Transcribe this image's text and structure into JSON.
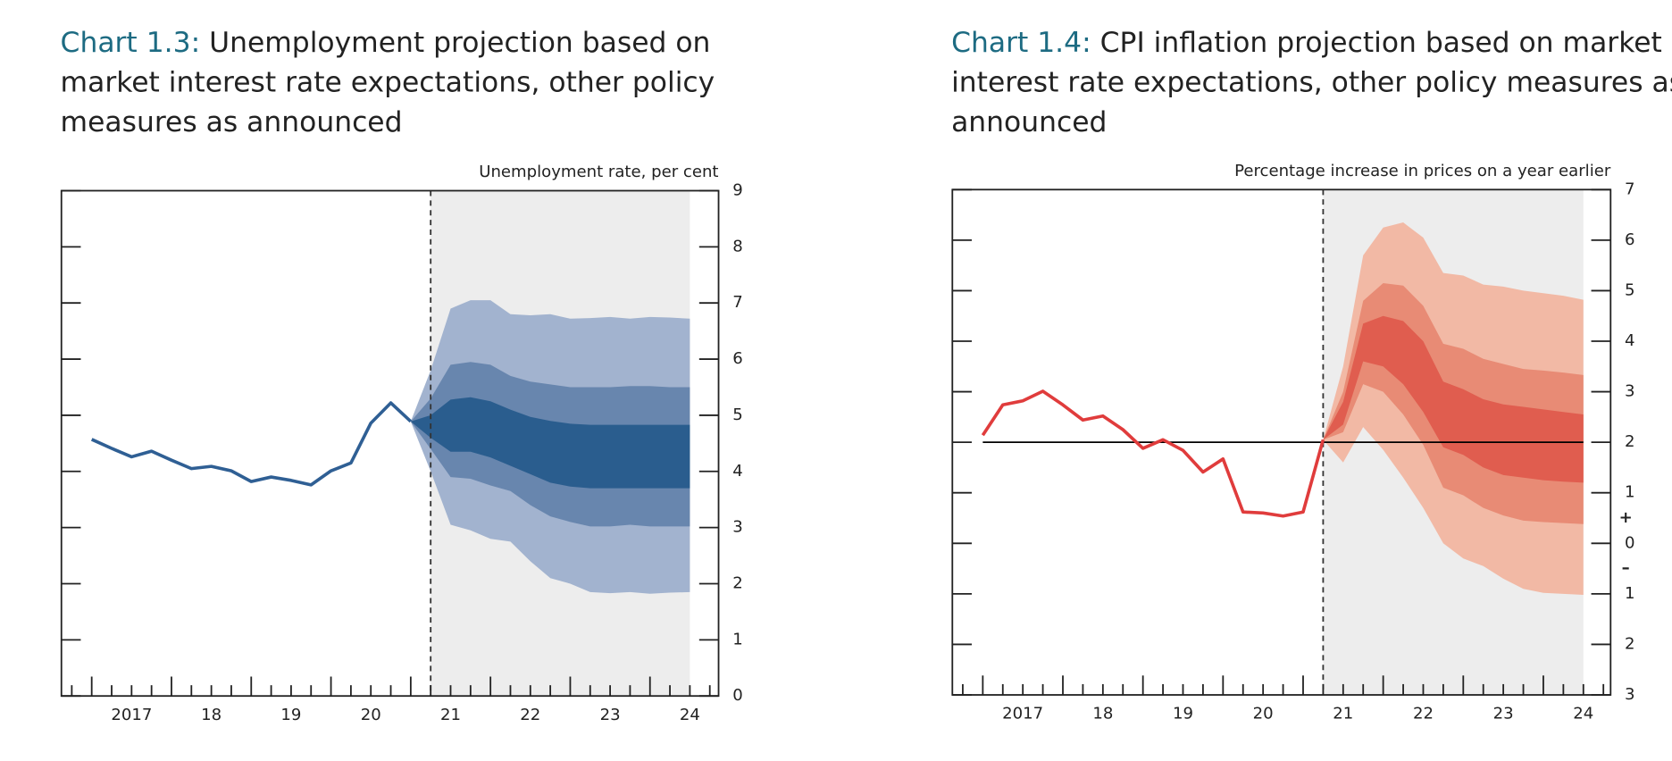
{
  "chart_data": [
    {
      "type": "fan",
      "title_prefix": "Chart 1.3:",
      "title": "Unemployment projection based on market interest rate expectations, other policy measures as announced",
      "y_label": "Unemployment rate, per cent",
      "x": [
        2017,
        2017.25,
        2017.5,
        2017.75,
        2018,
        2018.25,
        2018.5,
        2018.75,
        2019,
        2019.25,
        2019.5,
        2019.75,
        2020,
        2020.25,
        2020.5,
        2020.75,
        2021
      ],
      "values": [
        4.57,
        4.41,
        4.26,
        4.36,
        4.2,
        4.05,
        4.09,
        4.01,
        3.82,
        3.9,
        3.84,
        3.76,
        4.01,
        4.15,
        4.86,
        5.22,
        4.89
      ],
      "color": "#2f5f94",
      "fan_x": [
        2021,
        2021.25,
        2021.5,
        2021.75,
        2022,
        2022.25,
        2022.5,
        2022.75,
        2023,
        2023.25,
        2023.5,
        2023.75,
        2024,
        2024.25,
        2024.5
      ],
      "bands": [
        {
          "color": "#a2b3cf",
          "upper": [
            4.89,
            5.8,
            6.9,
            7.05,
            7.05,
            6.8,
            6.78,
            6.8,
            6.72,
            6.73,
            6.75,
            6.72,
            6.75,
            6.74,
            6.72
          ],
          "lower": [
            4.89,
            4.0,
            3.05,
            2.95,
            2.8,
            2.75,
            2.4,
            2.1,
            2.0,
            1.85,
            1.83,
            1.85,
            1.82,
            1.84,
            1.85
          ]
        },
        {
          "color": "#6886ae",
          "upper": [
            4.89,
            5.3,
            5.9,
            5.95,
            5.9,
            5.7,
            5.6,
            5.55,
            5.5,
            5.5,
            5.5,
            5.52,
            5.52,
            5.5,
            5.5
          ],
          "lower": [
            4.89,
            4.4,
            3.9,
            3.87,
            3.75,
            3.65,
            3.4,
            3.2,
            3.1,
            3.02,
            3.02,
            3.05,
            3.02,
            3.02,
            3.02
          ]
        },
        {
          "color": "#2a5d8e",
          "upper": [
            4.89,
            5.0,
            5.28,
            5.32,
            5.25,
            5.1,
            4.97,
            4.9,
            4.85,
            4.83,
            4.83,
            4.83,
            4.83,
            4.83,
            4.83
          ],
          "lower": [
            4.89,
            4.6,
            4.35,
            4.35,
            4.25,
            4.1,
            3.95,
            3.8,
            3.73,
            3.7,
            3.7,
            3.7,
            3.7,
            3.7,
            3.7
          ]
        }
      ],
      "projection_span": [
        2021.25,
        2024.5
      ],
      "xlim": [
        2016.62,
        2024.86
      ],
      "xticks": [
        {
          "value": 2017,
          "label": "2017"
        },
        {
          "value": 2018,
          "label": "18"
        },
        {
          "value": 2019,
          "label": "19"
        },
        {
          "value": 2020,
          "label": "20"
        },
        {
          "value": 2021,
          "label": "21"
        },
        {
          "value": 2022,
          "label": "22"
        },
        {
          "value": 2023,
          "label": "23"
        },
        {
          "value": 2024,
          "label": "24"
        }
      ],
      "ylim": [
        0,
        9
      ],
      "yticks": [
        0,
        1,
        2,
        3,
        4,
        5,
        6,
        7,
        8,
        9
      ]
    },
    {
      "type": "fan",
      "title_prefix": "Chart 1.4:",
      "title": "CPI inflation projection based on market interest rate expectations, other policy measures as announced",
      "y_label": "Percentage increase in prices on a year earlier",
      "x": [
        2017,
        2017.25,
        2017.5,
        2017.75,
        2018,
        2018.25,
        2018.5,
        2018.75,
        2019,
        2019.25,
        2019.5,
        2019.75,
        2020,
        2020.25,
        2020.5,
        2020.75,
        2021,
        2021.25
      ],
      "values": [
        2.14,
        2.74,
        2.82,
        3.01,
        2.74,
        2.44,
        2.52,
        2.25,
        1.88,
        2.05,
        1.84,
        1.41,
        1.67,
        0.62,
        0.6,
        0.54,
        0.62,
        2.05
      ],
      "color": "#e03c3c",
      "fan_x": [
        2021.25,
        2021.5,
        2021.75,
        2022,
        2022.25,
        2022.5,
        2022.75,
        2023,
        2023.25,
        2023.5,
        2023.75,
        2024,
        2024.25,
        2024.5
      ],
      "bands": [
        {
          "color": "#f2b9a5",
          "upper": [
            2.05,
            3.5,
            5.7,
            6.25,
            6.35,
            6.05,
            5.35,
            5.3,
            5.12,
            5.08,
            5.0,
            4.95,
            4.9,
            4.82
          ],
          "lower": [
            2.05,
            1.6,
            2.3,
            1.85,
            1.3,
            0.7,
            0.0,
            -0.3,
            -0.45,
            -0.7,
            -0.9,
            -0.98,
            -1.0,
            -1.02
          ]
        },
        {
          "color": "#e88b75",
          "upper": [
            2.05,
            3.0,
            4.8,
            5.15,
            5.1,
            4.7,
            3.95,
            3.85,
            3.65,
            3.55,
            3.45,
            3.42,
            3.38,
            3.33
          ],
          "lower": [
            2.05,
            2.2,
            3.15,
            3.0,
            2.55,
            1.95,
            1.1,
            0.95,
            0.7,
            0.55,
            0.45,
            0.42,
            0.4,
            0.38
          ]
        },
        {
          "color": "#e05d4f",
          "upper": [
            2.05,
            2.8,
            4.35,
            4.5,
            4.4,
            4.0,
            3.2,
            3.05,
            2.85,
            2.75,
            2.7,
            2.65,
            2.6,
            2.55
          ],
          "lower": [
            2.05,
            2.35,
            3.6,
            3.5,
            3.15,
            2.6,
            1.9,
            1.75,
            1.5,
            1.35,
            1.3,
            1.25,
            1.22,
            1.2
          ]
        }
      ],
      "projection_span": [
        2021.25,
        2024.5
      ],
      "reference_line": 2,
      "sign_labels": [
        "+",
        "–"
      ],
      "xlim": [
        2016.62,
        2024.84
      ],
      "xticks": [
        {
          "value": 2017,
          "label": "2017"
        },
        {
          "value": 2018,
          "label": "18"
        },
        {
          "value": 2019,
          "label": "19"
        },
        {
          "value": 2020,
          "label": "20"
        },
        {
          "value": 2021,
          "label": "21"
        },
        {
          "value": 2022,
          "label": "22"
        },
        {
          "value": 2023,
          "label": "23"
        },
        {
          "value": 2024,
          "label": "24"
        }
      ],
      "ylim": [
        -3,
        7
      ],
      "yticks": [
        {
          "value": -3,
          "label": "3"
        },
        {
          "value": -2,
          "label": "2"
        },
        {
          "value": -1,
          "label": "1"
        },
        0,
        1,
        2,
        3,
        4,
        5,
        6,
        7
      ]
    }
  ]
}
